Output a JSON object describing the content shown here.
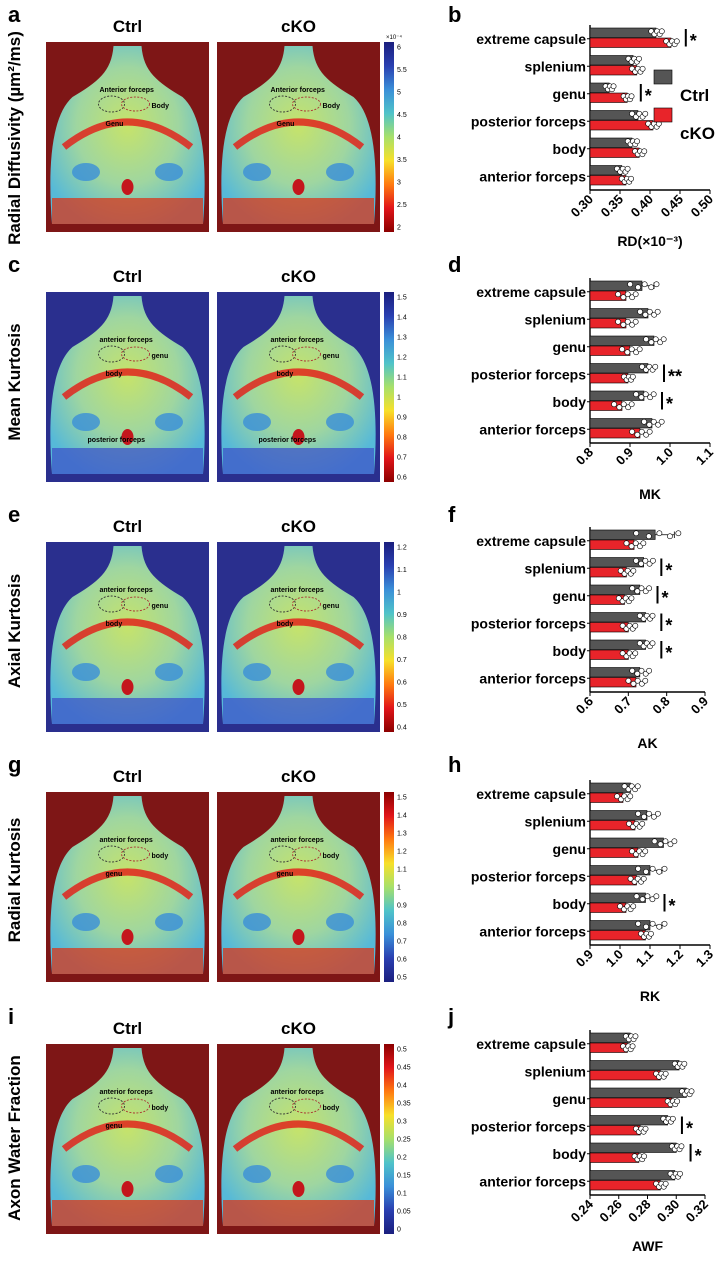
{
  "figure": {
    "colors": {
      "ctrl": "#555555",
      "cko": "#e8242a",
      "frame_dark_red": "#7e1616",
      "frame_dark_blue": "#2a2f8e"
    },
    "legend": {
      "ctrl": "Ctrl",
      "cko": "cKO"
    }
  },
  "rows": [
    {
      "letter_map": "a",
      "letter_chart": "b",
      "row_label": "Radial Diffusivity (µm²/ms)",
      "ctrl_title": "Ctrl",
      "cko_title": "cKO",
      "frame": "dark_red",
      "colorbar": {
        "exponent": "×10⁻⁴",
        "ticks": [
          "6",
          "5.5",
          "5",
          "4.5",
          "4",
          "3.5",
          "3",
          "2.5",
          "2"
        ]
      },
      "map_labels": {
        "ctrl": [
          "Anterior forceps",
          "Body",
          "Genu"
        ],
        "cko": [
          "Anterior forceps",
          "Body",
          "Genu"
        ]
      }
    },
    {
      "letter_map": "c",
      "letter_chart": "d",
      "row_label": "Mean Kurtosis",
      "ctrl_title": "Ctrl",
      "cko_title": "cKO",
      "frame": "dark_blue",
      "colorbar": {
        "exponent": "",
        "ticks": [
          "1.5",
          "1.4",
          "1.3",
          "1.2",
          "1.1",
          "1",
          "0.9",
          "0.8",
          "0.7",
          "0.6"
        ]
      },
      "map_labels": {
        "ctrl": [
          "anterior forceps",
          "genu",
          "body",
          "posterior forceps"
        ],
        "cko": [
          "anterior forceps",
          "genu",
          "body",
          "posterior forceps"
        ]
      }
    },
    {
      "letter_map": "e",
      "letter_chart": "f",
      "row_label": "Axial Kurtosis",
      "ctrl_title": "Ctrl",
      "cko_title": "cKO",
      "frame": "dark_blue",
      "colorbar": {
        "exponent": "",
        "ticks": [
          "1.2",
          "1.1",
          "1",
          "0.9",
          "0.8",
          "0.7",
          "0.6",
          "0.5",
          "0.4"
        ]
      },
      "map_labels": {
        "ctrl": [
          "anterior forceps",
          "genu",
          "body"
        ],
        "cko": [
          "anterior forceps",
          "genu",
          "body"
        ]
      }
    },
    {
      "letter_map": "g",
      "letter_chart": "h",
      "row_label": "Radial Kurtosis",
      "ctrl_title": "Ctrl",
      "cko_title": "cKO",
      "frame": "dark_red",
      "colorbar": {
        "exponent": "",
        "ticks": [
          "1.5",
          "1.4",
          "1.3",
          "1.2",
          "1.1",
          "1",
          "0.9",
          "0.8",
          "0.7",
          "0.6",
          "0.5"
        ]
      },
      "map_labels": {
        "ctrl": [
          "anterior forceps",
          "body",
          "genu"
        ],
        "cko": [
          "anterior forceps",
          "body",
          "genu"
        ]
      }
    },
    {
      "letter_map": "i",
      "letter_chart": "j",
      "row_label": "Axon Water Fraction",
      "ctrl_title": "Ctrl",
      "cko_title": "cKO",
      "frame": "dark_red",
      "colorbar": {
        "exponent": "",
        "ticks": [
          "0.5",
          "0.45",
          "0.4",
          "0.35",
          "0.3",
          "0.25",
          "0.2",
          "0.15",
          "0.1",
          "0.05",
          "0"
        ]
      },
      "map_labels": {
        "ctrl": [
          "anterior forceps",
          "body",
          "genu"
        ],
        "cko": [
          "anterior forceps",
          "body"
        ]
      }
    }
  ],
  "chart_data": [
    {
      "type": "bar",
      "orientation": "horizontal",
      "panel": "b",
      "categories": [
        "extreme capsule",
        "splenium",
        "genu",
        "posterior forceps",
        "body",
        "anterior forceps"
      ],
      "series": [
        {
          "name": "Ctrl",
          "values": [
            0.41,
            0.372,
            0.332,
            0.38,
            0.37,
            0.353
          ],
          "errors": [
            0.008,
            0.008,
            0.006,
            0.01,
            0.007,
            0.008
          ]
        },
        {
          "name": "cKO",
          "values": [
            0.435,
            0.378,
            0.362,
            0.405,
            0.382,
            0.36
          ],
          "errors": [
            0.008,
            0.008,
            0.006,
            0.008,
            0.007,
            0.007
          ]
        }
      ],
      "significance": [
        "*",
        "",
        "*",
        "",
        "",
        ""
      ],
      "xlabel": "RD(×10⁻³)",
      "xlim": [
        0.3,
        0.5
      ],
      "xticks": [
        "0.30",
        "0.35",
        "0.40",
        "0.45",
        "0.50"
      ],
      "legend": "right"
    },
    {
      "type": "bar",
      "orientation": "horizontal",
      "panel": "d",
      "categories": [
        "extreme capsule",
        "splenium",
        "genu",
        "posterior forceps",
        "body",
        "anterior forceps"
      ],
      "series": [
        {
          "name": "Ctrl",
          "values": [
            0.93,
            0.945,
            0.96,
            0.945,
            0.935,
            0.955
          ],
          "errors": [
            0.03,
            0.02,
            0.02,
            0.015,
            0.02,
            0.02
          ]
        },
        {
          "name": "cKO",
          "values": [
            0.89,
            0.89,
            0.9,
            0.895,
            0.88,
            0.925
          ],
          "errors": [
            0.02,
            0.02,
            0.02,
            0.01,
            0.02,
            0.02
          ]
        }
      ],
      "significance": [
        "",
        "",
        "",
        "**",
        "*",
        ""
      ],
      "xlabel": "MK",
      "xlim": [
        0.8,
        1.1
      ],
      "xticks": [
        "0.8",
        "0.9",
        "1.0",
        "1.1"
      ]
    },
    {
      "type": "bar",
      "orientation": "horizontal",
      "panel": "f",
      "categories": [
        "extreme capsule",
        "splenium",
        "genu",
        "posterior forceps",
        "body",
        "anterior forceps"
      ],
      "series": [
        {
          "name": "Ctrl",
          "values": [
            0.77,
            0.74,
            0.73,
            0.745,
            0.745,
            0.73
          ],
          "errors": [
            0.05,
            0.02,
            0.02,
            0.015,
            0.015,
            0.02
          ]
        },
        {
          "name": "cKO",
          "values": [
            0.715,
            0.695,
            0.69,
            0.7,
            0.7,
            0.72
          ],
          "errors": [
            0.02,
            0.015,
            0.015,
            0.015,
            0.015,
            0.02
          ]
        }
      ],
      "significance": [
        "",
        "*",
        "*",
        "*",
        "*",
        ""
      ],
      "xlabel": "AK",
      "xlim": [
        0.6,
        0.9
      ],
      "xticks": [
        "0.6",
        "0.7",
        "0.8",
        "0.9"
      ]
    },
    {
      "type": "bar",
      "orientation": "horizontal",
      "panel": "h",
      "categories": [
        "extreme capsule",
        "splenium",
        "genu",
        "posterior forceps",
        "body",
        "anterior forceps"
      ],
      "series": [
        {
          "name": "Ctrl",
          "values": [
            1.035,
            1.09,
            1.145,
            1.1,
            1.085,
            1.1
          ],
          "errors": [
            0.02,
            0.03,
            0.03,
            0.04,
            0.03,
            0.04
          ]
        },
        {
          "name": "cKO",
          "values": [
            1.01,
            1.05,
            1.06,
            1.055,
            1.02,
            1.085
          ],
          "errors": [
            0.02,
            0.02,
            0.02,
            0.02,
            0.02,
            0.015
          ]
        }
      ],
      "significance": [
        "",
        "",
        "",
        "",
        "*",
        ""
      ],
      "xlabel": "RK",
      "xlim": [
        0.9,
        1.3
      ],
      "xticks": [
        "0.9",
        "1.0",
        "1.1",
        "1.2",
        "1.3"
      ]
    },
    {
      "type": "bar",
      "orientation": "horizontal",
      "panel": "j",
      "categories": [
        "extreme capsule",
        "splenium",
        "genu",
        "posterior forceps",
        "body",
        "anterior forceps"
      ],
      "series": [
        {
          "name": "Ctrl",
          "values": [
            0.268,
            0.302,
            0.307,
            0.294,
            0.3,
            0.299
          ],
          "errors": [
            0.003,
            0.003,
            0.003,
            0.003,
            0.003,
            0.003
          ]
        },
        {
          "name": "cKO",
          "values": [
            0.266,
            0.289,
            0.297,
            0.275,
            0.274,
            0.289
          ],
          "errors": [
            0.003,
            0.003,
            0.003,
            0.003,
            0.003,
            0.003
          ]
        }
      ],
      "significance": [
        "",
        "",
        "",
        "*",
        "*",
        ""
      ],
      "xlabel": "AWF",
      "xlim": [
        0.24,
        0.32
      ],
      "xticks": [
        "0.24",
        "0.26",
        "0.28",
        "0.30",
        "0.32"
      ]
    }
  ]
}
